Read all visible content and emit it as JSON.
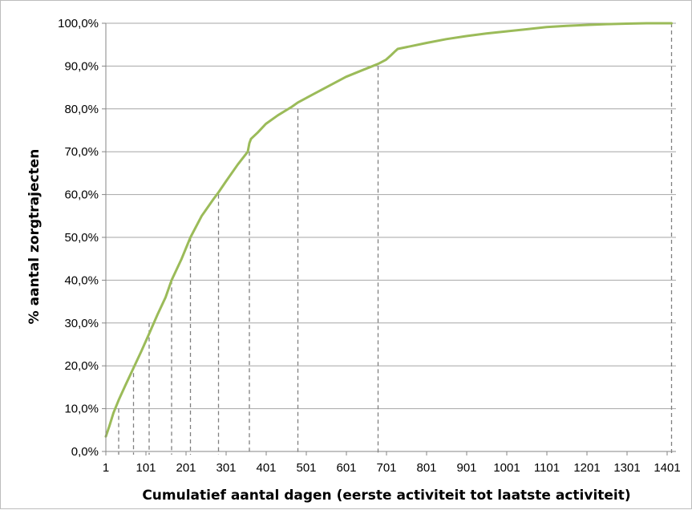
{
  "chart_data": {
    "type": "line",
    "title": "",
    "xlabel": "Cumulatief aantal dagen (eerste activiteit tot laatste activiteit)",
    "ylabel": "% aantal zorgtrajecten",
    "xlim": [
      1,
      1415
    ],
    "ylim": [
      0,
      100
    ],
    "x_ticks": [
      1,
      101,
      201,
      301,
      401,
      501,
      601,
      701,
      801,
      901,
      1001,
      1101,
      1201,
      1301,
      1401
    ],
    "x_tick_labels": [
      "1",
      "101",
      "201",
      "301",
      "401",
      "501",
      "601",
      "701",
      "801",
      "901",
      "1001",
      "1101",
      "1201",
      "1301",
      "1401"
    ],
    "y_ticks": [
      0,
      10,
      20,
      30,
      40,
      50,
      60,
      70,
      80,
      90,
      100
    ],
    "y_tick_labels": [
      "0,0%",
      "10,0%",
      "20,0%",
      "30,0%",
      "40,0%",
      "50,0%",
      "60,0%",
      "70,0%",
      "80,0%",
      "90,0%",
      "100,0%"
    ],
    "grid": {
      "horizontal": true,
      "vertical": false
    },
    "legend": "none",
    "series": [
      {
        "color": "#9bbb59",
        "x": [
          1,
          10,
          20,
          33,
          50,
          70,
          90,
          109,
          130,
          150,
          165,
          190,
          212,
          240,
          270,
          282,
          300,
          330,
          355,
          359,
          363,
          380,
          400,
          430,
          465,
          480,
          520,
          560,
          600,
          640,
          680,
          700,
          712,
          723,
          729,
          760,
          800,
          850,
          900,
          950,
          1000,
          1050,
          1100,
          1150,
          1200,
          1250,
          1300,
          1350,
          1400,
          1412
        ],
        "y": [
          3.5,
          6,
          9,
          12,
          15.5,
          19.5,
          23.5,
          27.5,
          32,
          36,
          40,
          45,
          50,
          55,
          59,
          60.5,
          63,
          67,
          70,
          72,
          73,
          74.5,
          76.5,
          78.5,
          80.5,
          81.5,
          83.5,
          85.5,
          87.5,
          89,
          90.5,
          91.5,
          92.5,
          93.5,
          94,
          94.6,
          95.4,
          96.3,
          97,
          97.6,
          98.1,
          98.6,
          99.1,
          99.4,
          99.6,
          99.8,
          99.9,
          100,
          100,
          100
        ]
      }
    ],
    "reference_lines": {
      "style": "dashed",
      "color": "#7f7f7f",
      "x": [
        33,
        70,
        109,
        165,
        212,
        282,
        359,
        480,
        680,
        1412
      ],
      "y": [
        10,
        20,
        30,
        40,
        50,
        60,
        70,
        80,
        90,
        100
      ]
    }
  }
}
